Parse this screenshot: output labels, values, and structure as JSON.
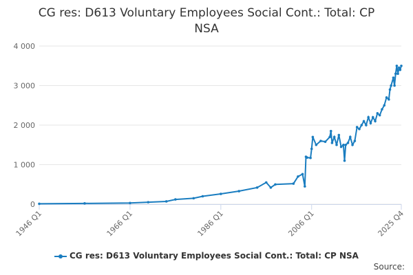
{
  "chart_data": {
    "type": "line",
    "title": "CG res: D613 Voluntary Employees Social Cont.: Total: CP NSA",
    "source": "Source:",
    "x": [
      1946,
      1956,
      1966,
      1970,
      1974,
      1976,
      1980,
      1982,
      1986,
      1990,
      1994,
      1996,
      1997,
      1998,
      2002,
      2003,
      2004,
      2004.5,
      2004.75,
      2005,
      2005.75,
      2006,
      2006.25,
      2007,
      2008,
      2009,
      2010,
      2010.25,
      2010.5,
      2011,
      2011.5,
      2012,
      2012.5,
      2013,
      2013.25,
      2013.5,
      2014,
      2014.5,
      2015,
      2015.5,
      2016,
      2016.5,
      2017,
      2017.5,
      2018,
      2018.5,
      2019,
      2019.5,
      2020,
      2020.5,
      2021,
      2021.5,
      2022,
      2022.5,
      2023,
      2023.25,
      2023.5,
      2024,
      2024.25,
      2024.5,
      2024.75,
      2025,
      2025.25,
      2025.5,
      2025.75
    ],
    "series": [
      {
        "name": "CG res: D613 Voluntary Employees Social Cont.: Total: CP NSA",
        "color": "#1a7dc0",
        "values": [
          10,
          20,
          30,
          50,
          70,
          120,
          150,
          200,
          260,
          330,
          420,
          550,
          420,
          500,
          520,
          700,
          760,
          450,
          1200,
          1180,
          1170,
          1400,
          1700,
          1500,
          1600,
          1580,
          1700,
          1850,
          1550,
          1700,
          1500,
          1750,
          1450,
          1500,
          1100,
          1500,
          1550,
          1700,
          1500,
          1600,
          1950,
          1900,
          2000,
          2100,
          2000,
          2200,
          2050,
          2200,
          2100,
          2300,
          2250,
          2400,
          2500,
          2700,
          2650,
          2900,
          3000,
          3200,
          3000,
          3300,
          3500,
          3300,
          3450,
          3400,
          3500
        ]
      }
    ],
    "xlim": [
      1946,
      2025.75
    ],
    "xticks": [
      {
        "value": 1946,
        "label": "1946 Q1"
      },
      {
        "value": 1966,
        "label": "1966 Q1"
      },
      {
        "value": 1986,
        "label": "1986 Q1"
      },
      {
        "value": 2006,
        "label": "2006 Q1"
      },
      {
        "value": 2025.75,
        "label": "2025 Q4"
      }
    ],
    "ylim": [
      0,
      4000
    ],
    "yticks": [
      0,
      {
        "value": 1000,
        "label": "1 000"
      },
      {
        "value": 2000,
        "label": "2 000"
      },
      {
        "value": 3000,
        "label": "3 000"
      },
      {
        "value": 4000,
        "label": "4 000"
      }
    ],
    "grid": true
  }
}
